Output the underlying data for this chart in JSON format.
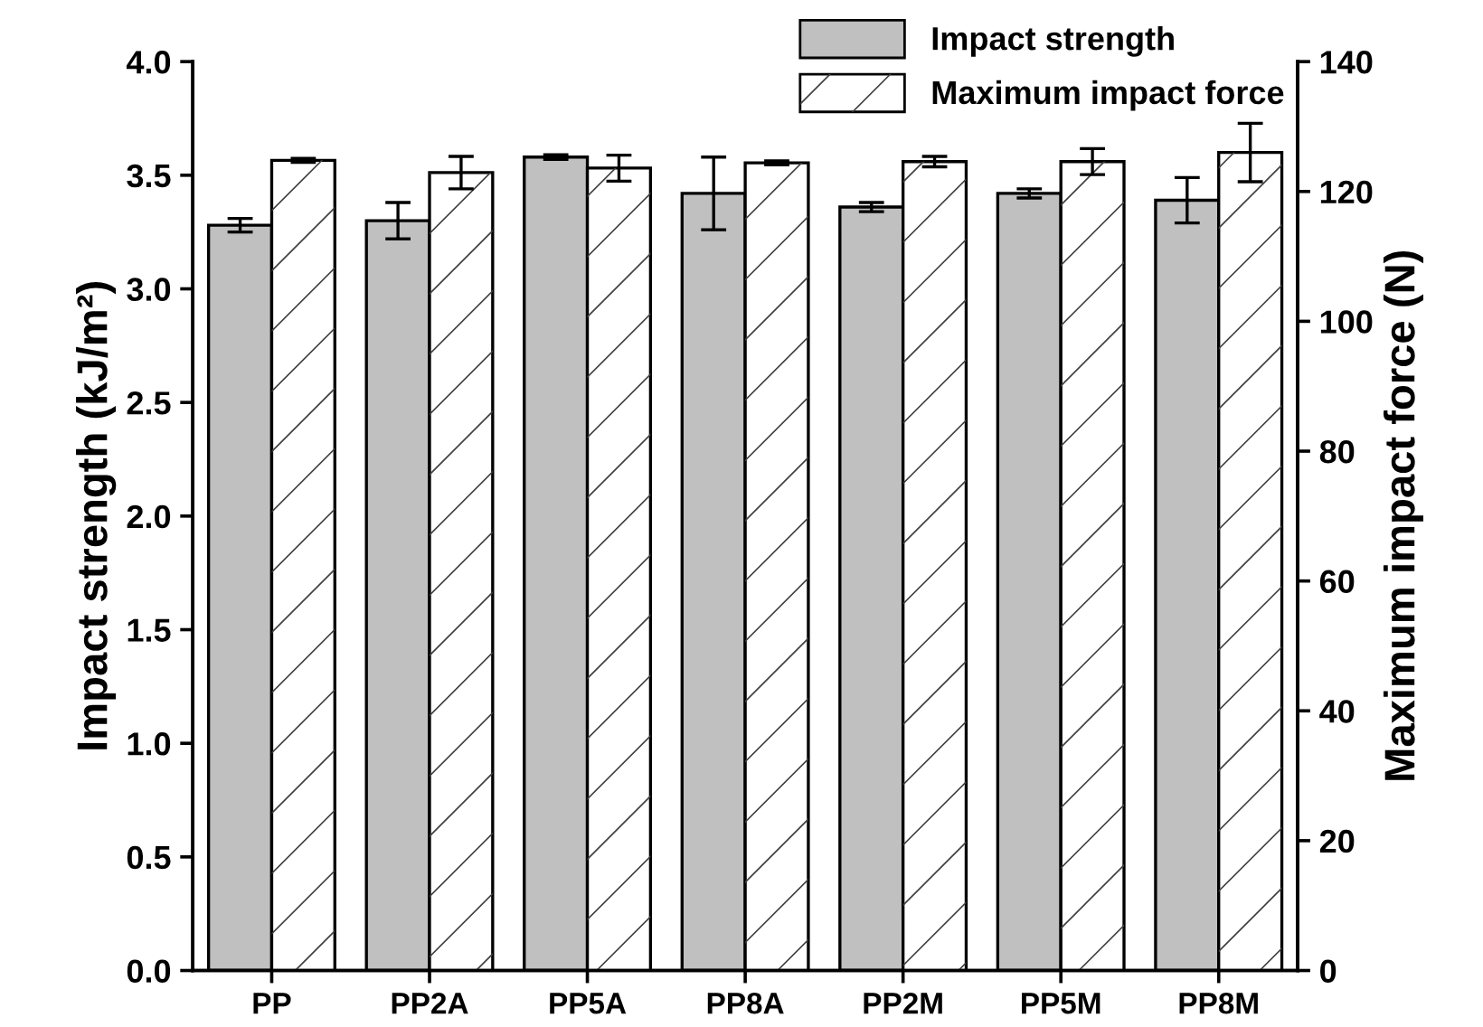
{
  "chart_data": {
    "type": "bar",
    "ylabel": "Impact strength (kJ/m²)",
    "y2label": "Maximum impact force (N)",
    "categories": [
      "PP",
      "PP2A",
      "PP5A",
      "PP8A",
      "PP2M",
      "PP5M",
      "PP8M"
    ],
    "series": [
      {
        "name": "Impact strength",
        "color": "#c0c0c0",
        "values": [
          3.28,
          3.3,
          3.58,
          3.42,
          3.36,
          3.42,
          3.39
        ],
        "errors": [
          0.03,
          0.08,
          0.01,
          0.16,
          0.02,
          0.02,
          0.1
        ]
      },
      {
        "name": "Maximum impact force",
        "color": "#ffffff",
        "axis": "y2",
        "values": [
          124.8,
          122.9,
          123.6,
          124.4,
          124.6,
          124.6,
          126
        ],
        "errors": [
          0.3,
          2.5,
          2,
          0.3,
          0.8,
          2,
          4.5
        ]
      }
    ],
    "ylim": [
      0,
      4
    ],
    "yticks": [
      {
        "value": 0,
        "label": "0.0"
      },
      {
        "value": 0.5,
        "label": "0.5"
      },
      {
        "value": 1,
        "label": "1.0"
      },
      {
        "value": 1.5,
        "label": "1.5"
      },
      {
        "value": 2,
        "label": "2.0"
      },
      {
        "value": 2.5,
        "label": "2.5"
      },
      {
        "value": 3,
        "label": "3.0"
      },
      {
        "value": 3.5,
        "label": "3.5"
      },
      {
        "value": 4,
        "label": "4.0"
      }
    ],
    "y2lim": [
      0,
      140
    ],
    "y2ticks": [
      0,
      20,
      40,
      60,
      80,
      100,
      120,
      140
    ],
    "legend": "top right",
    "grid": false
  }
}
